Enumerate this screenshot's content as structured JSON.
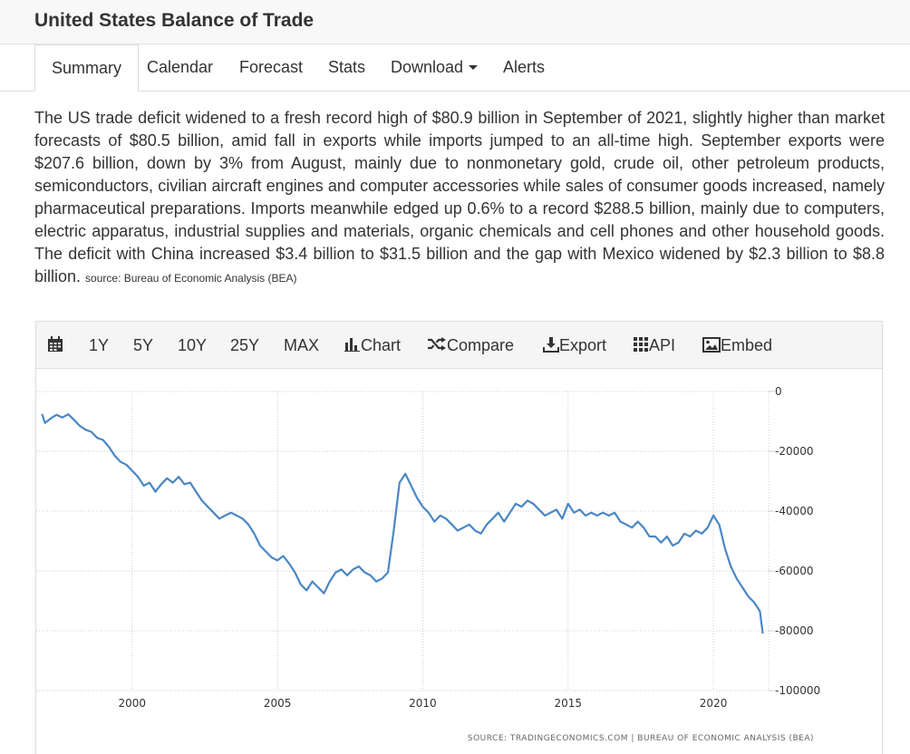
{
  "header": {
    "title": "United States Balance of Trade"
  },
  "tabs": [
    {
      "label": "Summary",
      "active": true
    },
    {
      "label": "Calendar"
    },
    {
      "label": "Forecast"
    },
    {
      "label": "Stats"
    },
    {
      "label": "Download"
    },
    {
      "label": "Alerts"
    }
  ],
  "summary": {
    "text": "The US trade deficit widened to a fresh record high of $80.9 billion in September of 2021, slightly higher than market forecasts of $80.5 billion, amid fall in exports while imports jumped to an all-time high. September exports were $207.6 billion, down by 3% from August, mainly due to nonmonetary gold, crude oil, other petroleum products, semiconductors, civilian aircraft engines and computer accessories while sales of consumer goods increased, namely pharmaceutical preparations. Imports meanwhile edged up 0.6% to a record $288.5 billion, mainly due to computers, electric apparatus, industrial supplies and materials, organic chemicals and cell phones and other household goods. The deficit with China increased $3.4 billion to $31.5 billion and the gap with Mexico widened by $2.3 billion to $8.8 billion.",
    "source": "source: Bureau of Economic Analysis (BEA)"
  },
  "toolbar": {
    "calendar_icon": "calendar-icon",
    "ranges": [
      "1Y",
      "5Y",
      "10Y",
      "25Y",
      "MAX"
    ],
    "chart_label": "Chart",
    "compare_label": "Compare",
    "export_label": "Export",
    "api_label": "API",
    "embed_label": "Embed"
  },
  "chart_source": "SOURCE: TRADINGECONOMICS.COM  |  BUREAU OF ECONOMIC ANALYSIS (BEA)",
  "colors": {
    "line": "#4a86c5",
    "grid": "#cccccc",
    "text": "#333333"
  },
  "chart_data": {
    "type": "line",
    "title": "",
    "xlabel": "",
    "ylabel": "",
    "xlim": [
      1996.7,
      2021.9
    ],
    "ylim": [
      -100000,
      0
    ],
    "x_ticks": [
      2000,
      2005,
      2010,
      2015,
      2020
    ],
    "y_ticks": [
      0,
      -20000,
      -40000,
      -60000,
      -80000,
      -100000
    ],
    "y_axis_side": "right",
    "grid": true,
    "series": [
      {
        "points": [
          [
            1996.9,
            -7500
          ],
          [
            1997.0,
            -10500
          ],
          [
            1997.2,
            -9000
          ],
          [
            1997.4,
            -7800
          ],
          [
            1997.6,
            -8700
          ],
          [
            1997.8,
            -7600
          ],
          [
            1998.0,
            -9500
          ],
          [
            1998.2,
            -11500
          ],
          [
            1998.4,
            -12800
          ],
          [
            1998.6,
            -13500
          ],
          [
            1998.8,
            -15500
          ],
          [
            1999.0,
            -16200
          ],
          [
            1999.2,
            -18500
          ],
          [
            1999.4,
            -21500
          ],
          [
            1999.6,
            -23500
          ],
          [
            1999.8,
            -24500
          ],
          [
            2000.0,
            -26500
          ],
          [
            2000.2,
            -28500
          ],
          [
            2000.4,
            -31500
          ],
          [
            2000.6,
            -30500
          ],
          [
            2000.8,
            -33500
          ],
          [
            2001.0,
            -31000
          ],
          [
            2001.2,
            -29000
          ],
          [
            2001.4,
            -30500
          ],
          [
            2001.6,
            -28500
          ],
          [
            2001.8,
            -31000
          ],
          [
            2002.0,
            -30500
          ],
          [
            2002.2,
            -33500
          ],
          [
            2002.4,
            -36500
          ],
          [
            2002.6,
            -38500
          ],
          [
            2002.8,
            -40500
          ],
          [
            2003.0,
            -42500
          ],
          [
            2003.2,
            -41500
          ],
          [
            2003.4,
            -40500
          ],
          [
            2003.6,
            -41500
          ],
          [
            2003.8,
            -42500
          ],
          [
            2004.0,
            -44500
          ],
          [
            2004.2,
            -47500
          ],
          [
            2004.4,
            -51500
          ],
          [
            2004.6,
            -53500
          ],
          [
            2004.8,
            -55500
          ],
          [
            2005.0,
            -56500
          ],
          [
            2005.2,
            -55000
          ],
          [
            2005.4,
            -57500
          ],
          [
            2005.6,
            -60500
          ],
          [
            2005.8,
            -64500
          ],
          [
            2006.0,
            -66500
          ],
          [
            2006.2,
            -63500
          ],
          [
            2006.4,
            -65500
          ],
          [
            2006.6,
            -67500
          ],
          [
            2006.8,
            -63500
          ],
          [
            2007.0,
            -60500
          ],
          [
            2007.2,
            -59500
          ],
          [
            2007.4,
            -61500
          ],
          [
            2007.6,
            -59500
          ],
          [
            2007.8,
            -58500
          ],
          [
            2008.0,
            -60500
          ],
          [
            2008.2,
            -61500
          ],
          [
            2008.4,
            -63500
          ],
          [
            2008.6,
            -62500
          ],
          [
            2008.8,
            -60500
          ],
          [
            2009.0,
            -46500
          ],
          [
            2009.2,
            -30500
          ],
          [
            2009.4,
            -27500
          ],
          [
            2009.6,
            -31500
          ],
          [
            2009.8,
            -35500
          ],
          [
            2010.0,
            -38500
          ],
          [
            2010.2,
            -40500
          ],
          [
            2010.4,
            -43500
          ],
          [
            2010.6,
            -41500
          ],
          [
            2010.8,
            -42500
          ],
          [
            2011.0,
            -44500
          ],
          [
            2011.2,
            -46500
          ],
          [
            2011.4,
            -45500
          ],
          [
            2011.6,
            -44500
          ],
          [
            2011.8,
            -46500
          ],
          [
            2012.0,
            -47500
          ],
          [
            2012.2,
            -44500
          ],
          [
            2012.4,
            -42500
          ],
          [
            2012.6,
            -40500
          ],
          [
            2012.8,
            -43500
          ],
          [
            2013.0,
            -40500
          ],
          [
            2013.2,
            -37500
          ],
          [
            2013.4,
            -38500
          ],
          [
            2013.6,
            -36500
          ],
          [
            2013.8,
            -37500
          ],
          [
            2014.0,
            -39500
          ],
          [
            2014.2,
            -41500
          ],
          [
            2014.4,
            -40500
          ],
          [
            2014.6,
            -39500
          ],
          [
            2014.8,
            -42500
          ],
          [
            2015.0,
            -37500
          ],
          [
            2015.2,
            -40500
          ],
          [
            2015.4,
            -39500
          ],
          [
            2015.6,
            -41500
          ],
          [
            2015.8,
            -40500
          ],
          [
            2016.0,
            -41500
          ],
          [
            2016.2,
            -40500
          ],
          [
            2016.4,
            -41500
          ],
          [
            2016.6,
            -40500
          ],
          [
            2016.8,
            -43500
          ],
          [
            2017.0,
            -44500
          ],
          [
            2017.2,
            -45500
          ],
          [
            2017.4,
            -43500
          ],
          [
            2017.6,
            -45500
          ],
          [
            2017.8,
            -48500
          ],
          [
            2018.0,
            -48500
          ],
          [
            2018.2,
            -50500
          ],
          [
            2018.4,
            -48500
          ],
          [
            2018.6,
            -51500
          ],
          [
            2018.8,
            -50500
          ],
          [
            2019.0,
            -47500
          ],
          [
            2019.2,
            -48500
          ],
          [
            2019.4,
            -46500
          ],
          [
            2019.6,
            -47500
          ],
          [
            2019.8,
            -45500
          ],
          [
            2020.0,
            -41500
          ],
          [
            2020.2,
            -44500
          ],
          [
            2020.4,
            -52500
          ],
          [
            2020.6,
            -58500
          ],
          [
            2020.8,
            -62500
          ],
          [
            2021.0,
            -65500
          ],
          [
            2021.2,
            -68500
          ],
          [
            2021.4,
            -70500
          ],
          [
            2021.6,
            -73500
          ],
          [
            2021.7,
            -80900
          ]
        ]
      }
    ]
  }
}
